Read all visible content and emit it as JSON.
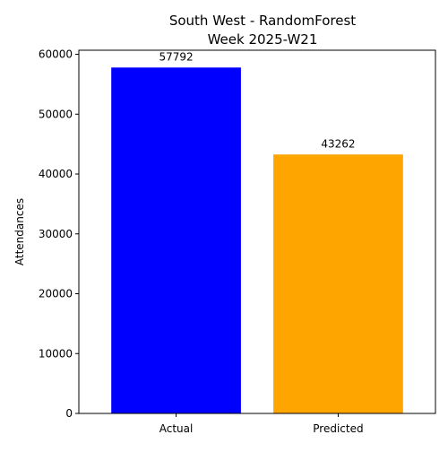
{
  "chart_data": {
    "type": "bar",
    "title_line1": "South West - RandomForest",
    "title_line2": "Week 2025-W21",
    "xlabel": "",
    "ylabel": "Attendances",
    "categories": [
      "Actual",
      "Predicted"
    ],
    "values": [
      57792,
      43262
    ],
    "data_labels": [
      "57792",
      "43262"
    ],
    "colors": [
      "#0000ff",
      "#ffa500"
    ],
    "ylim": [
      0,
      60681.6
    ],
    "yticks": [
      0,
      10000,
      20000,
      30000,
      40000,
      50000,
      60000
    ],
    "ytick_labels": [
      "0",
      "10000",
      "20000",
      "30000",
      "40000",
      "50000",
      "60000"
    ],
    "grid": false,
    "legend": "none"
  }
}
